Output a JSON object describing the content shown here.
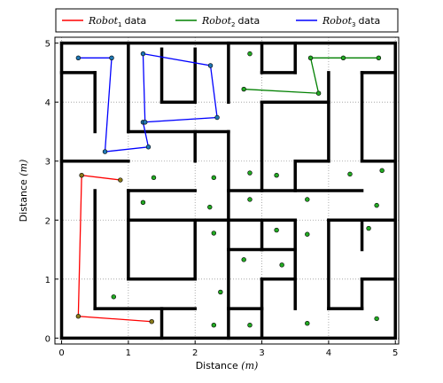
{
  "chart_data": {
    "type": "line",
    "title": "",
    "xlabel": "Distance",
    "ylabel": "Distance",
    "unit": "(m)",
    "xlim": [
      -0.1,
      5.05
    ],
    "ylim": [
      -0.1,
      5.1
    ],
    "x_ticks": [
      "0",
      "1",
      "2",
      "3",
      "4",
      "5"
    ],
    "y_ticks": [
      "0",
      "1",
      "2",
      "3",
      "4",
      "5"
    ],
    "grid": true,
    "legend_placement": "top",
    "series": [
      {
        "name": "Robot",
        "subscript": "1",
        "suffix": "data",
        "color": "#ff0000",
        "points": [
          [
            1.35,
            0.28
          ],
          [
            0.25,
            0.37
          ],
          [
            0.3,
            2.76
          ],
          [
            0.88,
            2.68
          ]
        ]
      },
      {
        "name": "Robot",
        "subscript": "2",
        "suffix": "data",
        "color": "#008000",
        "points": [
          [
            2.73,
            4.22
          ],
          [
            3.85,
            4.15
          ],
          [
            3.73,
            4.75
          ],
          [
            4.22,
            4.75
          ],
          [
            4.75,
            4.75
          ]
        ]
      },
      {
        "name": "Robot",
        "subscript": "3",
        "suffix": "data",
        "color": "#0000ff",
        "points": [
          [
            0.25,
            4.75
          ],
          [
            0.75,
            4.75
          ],
          [
            0.65,
            3.16
          ],
          [
            1.3,
            3.24
          ],
          [
            1.22,
            3.66
          ],
          [
            2.33,
            3.74
          ],
          [
            2.23,
            4.62
          ],
          [
            1.22,
            4.82
          ],
          [
            1.25,
            3.66
          ]
        ]
      }
    ],
    "landmarks": [
      [
        2.82,
        4.82
      ],
      [
        1.38,
        2.72
      ],
      [
        2.28,
        2.72
      ],
      [
        2.82,
        2.8
      ],
      [
        3.22,
        2.76
      ],
      [
        4.32,
        2.78
      ],
      [
        4.8,
        2.84
      ],
      [
        1.22,
        2.3
      ],
      [
        2.22,
        2.22
      ],
      [
        2.82,
        2.35
      ],
      [
        3.68,
        2.35
      ],
      [
        4.72,
        2.25
      ],
      [
        2.28,
        1.78
      ],
      [
        3.22,
        1.83
      ],
      [
        3.68,
        1.76
      ],
      [
        4.6,
        1.86
      ],
      [
        2.73,
        1.33
      ],
      [
        3.3,
        1.24
      ],
      [
        0.78,
        0.7
      ],
      [
        2.38,
        0.78
      ],
      [
        2.28,
        0.22
      ],
      [
        2.82,
        0.22
      ],
      [
        3.68,
        0.25
      ],
      [
        4.72,
        0.33
      ]
    ],
    "walls": [
      [
        0,
        0,
        5,
        0
      ],
      [
        5,
        0,
        5,
        5
      ],
      [
        5,
        5,
        0,
        5
      ],
      [
        0,
        5,
        0,
        0
      ],
      [
        0,
        4.5,
        0.5,
        4.5
      ],
      [
        0.5,
        4.5,
        0.5,
        3.5
      ],
      [
        1,
        5,
        1,
        3.5
      ],
      [
        1.5,
        4.9,
        1.5,
        4
      ],
      [
        1.5,
        4,
        2,
        4
      ],
      [
        2,
        4,
        2,
        4.9
      ],
      [
        0,
        3,
        1,
        3
      ],
      [
        1,
        3.5,
        2.5,
        3.5
      ],
      [
        2.5,
        3.5,
        2.5,
        0
      ],
      [
        2,
        3.5,
        2,
        3
      ],
      [
        2.5,
        5,
        2.5,
        4
      ],
      [
        3,
        5,
        3,
        4.5
      ],
      [
        3,
        4.5,
        3.5,
        4.5
      ],
      [
        3.5,
        4.5,
        3.5,
        5
      ],
      [
        3,
        4,
        4,
        4
      ],
      [
        4,
        4.5,
        4,
        3
      ],
      [
        3,
        4,
        3,
        2.5
      ],
      [
        3.5,
        3,
        4,
        3
      ],
      [
        3.5,
        3,
        3.5,
        2.5
      ],
      [
        4.5,
        4.5,
        5,
        4.5
      ],
      [
        4.5,
        4.5,
        4.5,
        3
      ],
      [
        4.5,
        3,
        5,
        3
      ],
      [
        2.5,
        2.5,
        4.5,
        2.5
      ],
      [
        1,
        2.5,
        2,
        2.5
      ],
      [
        1,
        2.5,
        1,
        1
      ],
      [
        1,
        2,
        2.5,
        2
      ],
      [
        2,
        2,
        2,
        1
      ],
      [
        1,
        1,
        2,
        1
      ],
      [
        0.5,
        2.5,
        0.5,
        0.5
      ],
      [
        0.5,
        0.5,
        2,
        0.5
      ],
      [
        1.5,
        0.5,
        1.5,
        0
      ],
      [
        2.5,
        2,
        3.5,
        2
      ],
      [
        3,
        2,
        3,
        1.5
      ],
      [
        2.5,
        1.5,
        3,
        1.5
      ],
      [
        3.5,
        2,
        3.5,
        0.5
      ],
      [
        3,
        1.5,
        3.5,
        1.5
      ],
      [
        3,
        1,
        3.5,
        1
      ],
      [
        3,
        1,
        3,
        0
      ],
      [
        2.5,
        0.5,
        3,
        0.5
      ],
      [
        4,
        2,
        5,
        2
      ],
      [
        4,
        2,
        4,
        0.5
      ],
      [
        4,
        0.5,
        4.5,
        0.5
      ],
      [
        4.5,
        1.5,
        4.5,
        2
      ],
      [
        4.5,
        1,
        5,
        1
      ],
      [
        4.5,
        0.5,
        4.5,
        1
      ]
    ]
  }
}
